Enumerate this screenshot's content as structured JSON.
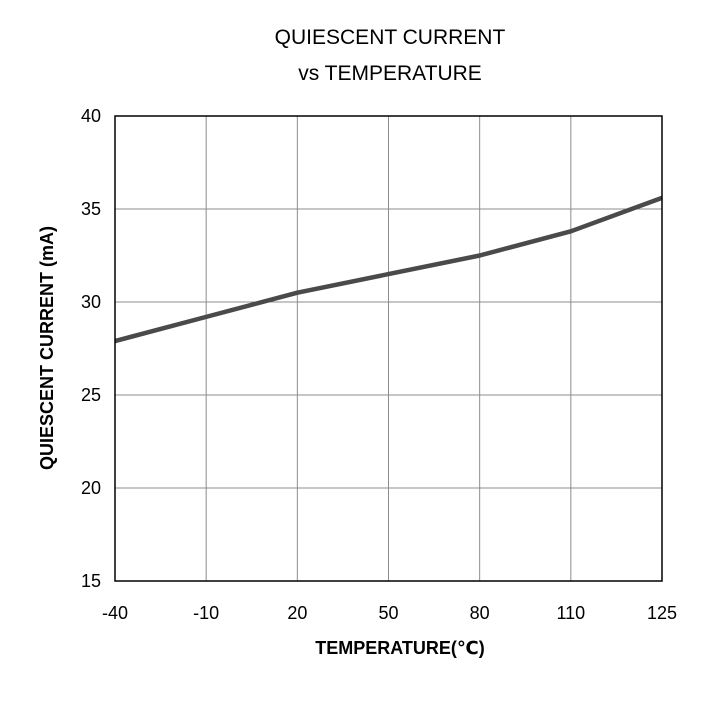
{
  "chart_data": {
    "type": "line",
    "title": [
      "QUIESCENT CURRENT",
      "vs TEMPERATURE"
    ],
    "xlabel": "TEMPERATURE(℃)",
    "ylabel": "QUIESCENT CURRENT (mA)",
    "categories": [
      "-40",
      "-10",
      "20",
      "50",
      "80",
      "110",
      "125"
    ],
    "ylim": [
      15,
      40
    ],
    "yticks": [
      15,
      20,
      25,
      30,
      35,
      40
    ],
    "grid": true,
    "legend": "none",
    "series": [
      {
        "values": [
          27.9,
          29.2,
          30.5,
          31.5,
          32.5,
          33.8,
          35.6
        ],
        "color": "#4a4a4a"
      }
    ]
  }
}
